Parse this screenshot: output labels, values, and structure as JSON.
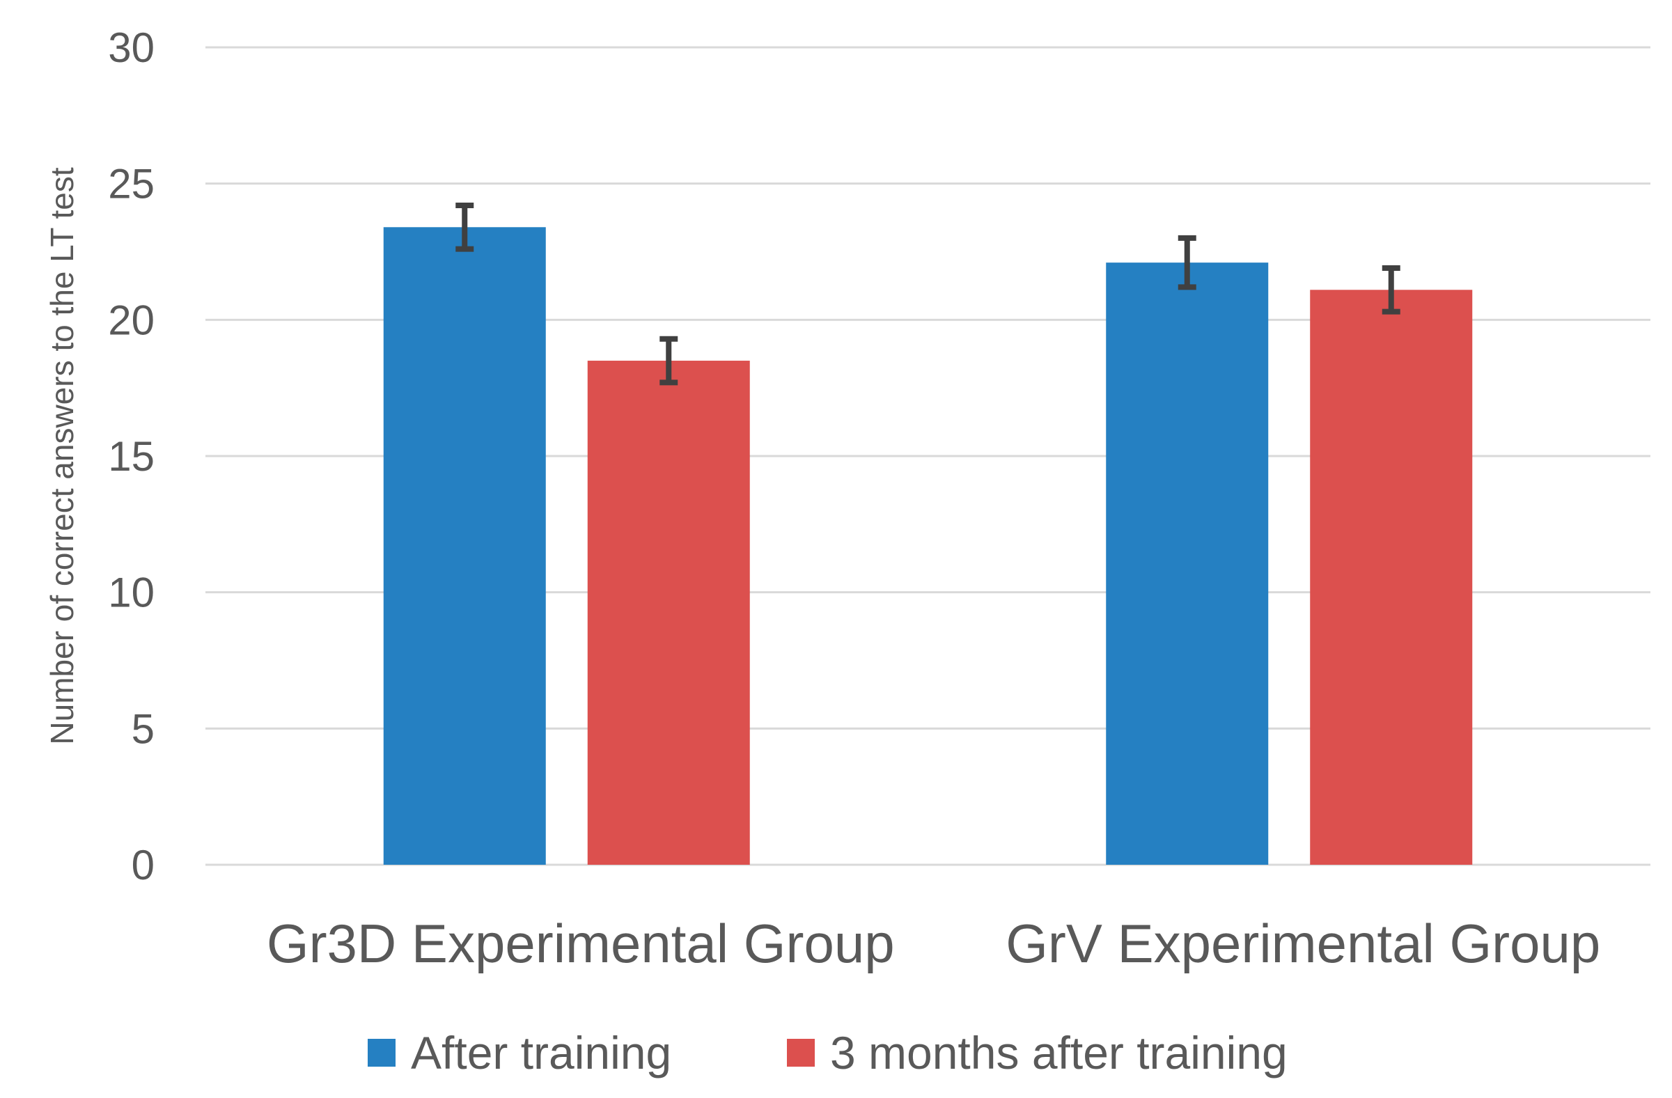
{
  "chart_data": {
    "type": "bar",
    "title": "",
    "xlabel": "",
    "ylabel": "Number of correct answers to the LT test",
    "ylim": [
      0,
      30
    ],
    "yticks": [
      0,
      5,
      10,
      15,
      20,
      25,
      30
    ],
    "grid": true,
    "legend_position": "bottom",
    "categories": [
      "Gr3D Experimental Group",
      "GrV Experimental Group"
    ],
    "series": [
      {
        "name": "After training",
        "color": "#2580C2",
        "values": [
          23.4,
          22.1
        ],
        "error": [
          0.8,
          0.9
        ]
      },
      {
        "name": "3 months after training",
        "color": "#DC504E",
        "values": [
          18.5,
          21.1
        ],
        "error": [
          0.8,
          0.8
        ]
      }
    ],
    "colors": {
      "grid": "#D9D9D9",
      "axis": "#D9D9D9",
      "error_bar": "#404040",
      "text": "#595959"
    }
  }
}
